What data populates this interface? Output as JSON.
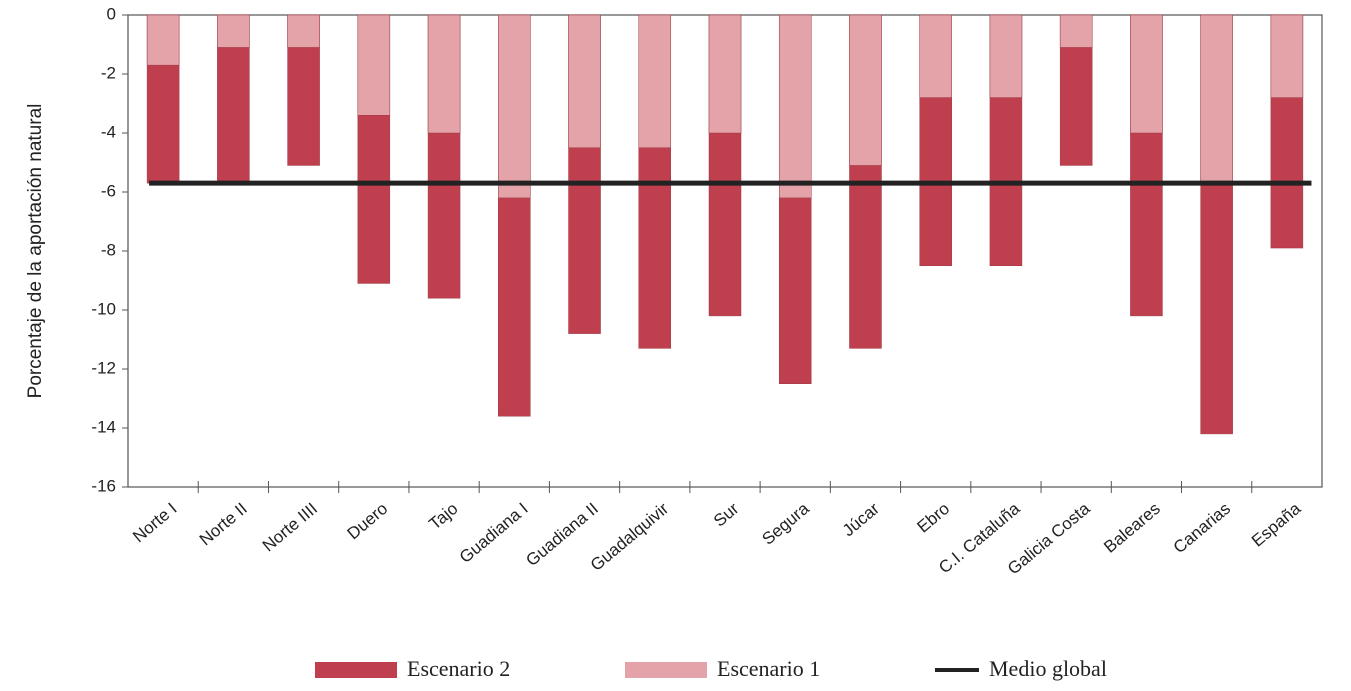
{
  "chart_data": {
    "type": "bar",
    "y_label": "Porcentaje de la aportación natural",
    "categories": [
      "Norte I",
      "Norte II",
      "Norte IIII",
      "Duero",
      "Tajo",
      "Guadiana I",
      "Guadiana II",
      "Guadalquivir",
      "Sur",
      "Segura",
      "Júcar",
      "Ebro",
      "C.I. Cataluña",
      "Galicia Costa",
      "Baleares",
      "Canarias",
      "España"
    ],
    "series": [
      {
        "name": "Escenario 2",
        "color": "#bf3f4f",
        "values": [
          -5.7,
          -5.7,
          -5.1,
          -9.1,
          -9.6,
          -13.6,
          -10.8,
          -11.3,
          -10.2,
          -12.5,
          -11.3,
          -8.5,
          -8.5,
          -5.1,
          -10.2,
          -14.2,
          -7.9
        ]
      },
      {
        "name": "Escenario 1",
        "color": "#e3a3a9",
        "values": [
          -1.7,
          -1.1,
          -1.1,
          -3.4,
          -4.0,
          -6.2,
          -4.5,
          -4.5,
          -4.0,
          -6.2,
          -5.1,
          -2.8,
          -2.8,
          -1.1,
          -4.0,
          -5.7,
          -2.8
        ]
      }
    ],
    "reference_line": {
      "name": "Medio global",
      "value": -5.7,
      "color": "#222222"
    },
    "ylim": [
      -16,
      0
    ],
    "yticks": [
      0,
      -2,
      -4,
      -6,
      -8,
      -10,
      -12,
      -14,
      -16
    ]
  }
}
